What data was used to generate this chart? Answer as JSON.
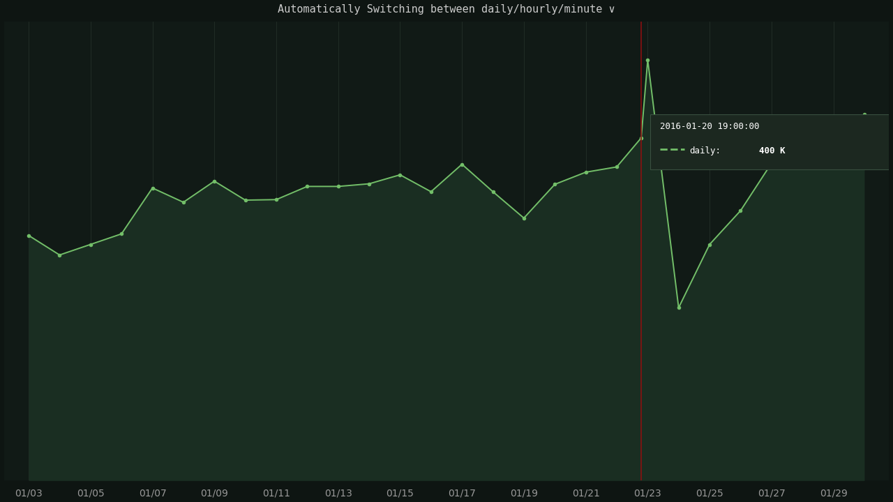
{
  "title": "Automatically Switching between daily/hourly/minute ∨",
  "background_color": "#0e1512",
  "plot_bg_color": "#111a16",
  "grid_color": "#243028",
  "line_color": "#73bf69",
  "fill_color": "#1a2e22",
  "marker_color": "#73bf69",
  "crosshair_color": "#8b1010",
  "tooltip_bg": "#1c2820",
  "tooltip_border": "#3a5040",
  "tooltip_text_color": "#ffffff",
  "tooltip_date": "2016-01-20 19:00:00",
  "tooltip_label": "daily:",
  "tooltip_value": "400 K",
  "crosshair_x": 22.79,
  "data_x": [
    3,
    4,
    5,
    6,
    7,
    8,
    9,
    10,
    11,
    12,
    13,
    14,
    15,
    16,
    17,
    18,
    19,
    20,
    21,
    22,
    22.79,
    23,
    24,
    25,
    26,
    27,
    28,
    29,
    30
  ],
  "data_y": [
    215,
    178,
    198,
    218,
    305,
    278,
    318,
    282,
    283,
    308,
    308,
    313,
    330,
    298,
    350,
    298,
    248,
    312,
    335,
    345,
    400,
    548,
    78,
    198,
    262,
    352,
    375,
    392,
    445
  ],
  "x_tick_labels": [
    "01/03",
    "01/05",
    "01/07",
    "01/09",
    "01/11",
    "01/13",
    "01/15",
    "01/17",
    "01/19",
    "01/21",
    "01/23",
    "01/25",
    "01/27",
    "01/29"
  ],
  "x_tick_positions": [
    3,
    5,
    7,
    9,
    11,
    13,
    15,
    17,
    19,
    21,
    23,
    25,
    27,
    29
  ],
  "ylim": [
    -250,
    620
  ],
  "xlim": [
    2.2,
    30.8
  ]
}
